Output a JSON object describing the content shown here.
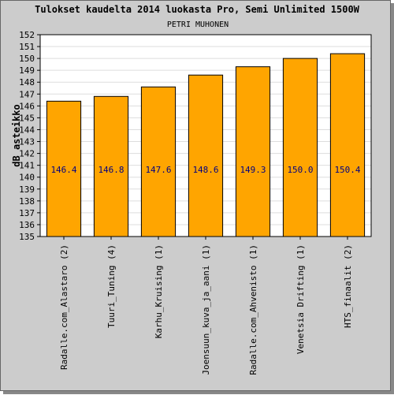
{
  "chart_data": {
    "type": "bar",
    "title": "Tulokset kaudelta 2014 luokasta Pro, Semi Unlimited 1500W",
    "subtitle": "PETRI MUHONEN",
    "ylabel": "dB asteikko",
    "xlabel": "",
    "ylim": [
      135,
      152
    ],
    "yticks": [
      135,
      136,
      137,
      138,
      139,
      140,
      141,
      142,
      143,
      144,
      145,
      146,
      147,
      148,
      149,
      150,
      151,
      152
    ],
    "grid": true,
    "categories": [
      "Radalle.com_Alastaro (2)",
      "Tuuri_Tuning (4)",
      "Karhu_Kruising (1)",
      "Joensuun_kuva_ja_aani (1)",
      "Radalle.com_Ahvenisto (1)",
      "Venetsia Drifting (1)",
      "HTS_finaalit (2)"
    ],
    "values": [
      146.4,
      146.8,
      147.6,
      148.6,
      149.3,
      150.0,
      150.4
    ],
    "value_labels": [
      "146.4",
      "146.8",
      "147.6",
      "148.6",
      "149.3",
      "150.0",
      "150.4"
    ],
    "bar_color": "#ffa500",
    "bar_edge_color": "#000000",
    "label_color": "#000080",
    "background": "#cccccc",
    "plot_background": "#ffffff"
  }
}
